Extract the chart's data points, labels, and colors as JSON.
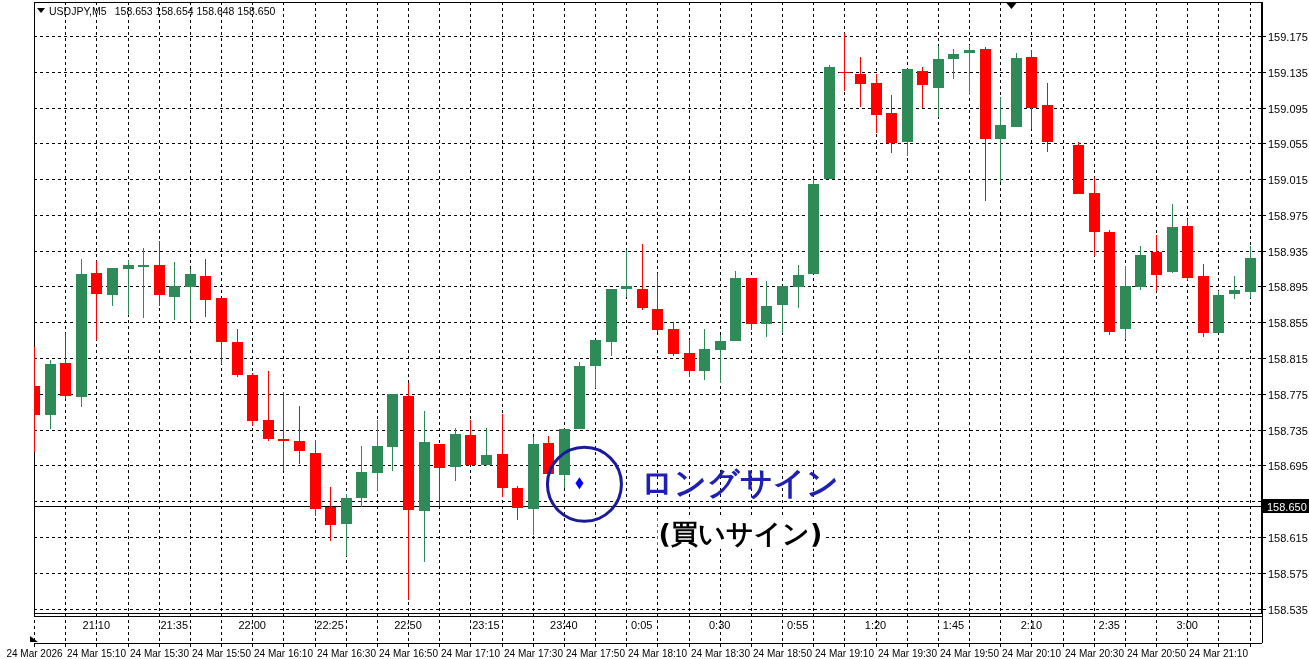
{
  "chart_data": {
    "type": "candlestick",
    "title": "USDJPY,M5",
    "subtitle": "158.653 158.654 158.648 158.650",
    "x": [
      "2026-03-24T14:50",
      "2026-03-24T14:55",
      "2026-03-24T15:00",
      "2026-03-24T15:05",
      "2026-03-24T15:10",
      "2026-03-24T15:15",
      "2026-03-24T15:20",
      "2026-03-24T15:25",
      "2026-03-24T15:30",
      "2026-03-24T15:35",
      "2026-03-24T15:40",
      "2026-03-24T15:45",
      "2026-03-24T15:50",
      "2026-03-24T15:55",
      "2026-03-24T16:00",
      "2026-03-24T16:05",
      "2026-03-24T16:10",
      "2026-03-24T16:15",
      "2026-03-24T16:20",
      "2026-03-24T16:25",
      "2026-03-24T16:30",
      "2026-03-24T16:35",
      "2026-03-24T16:40",
      "2026-03-24T16:45",
      "2026-03-24T16:50",
      "2026-03-24T16:55",
      "2026-03-24T17:00",
      "2026-03-24T17:05",
      "2026-03-24T17:10",
      "2026-03-24T17:15",
      "2026-03-24T17:20",
      "2026-03-24T17:25",
      "2026-03-24T17:30",
      "2026-03-24T17:35",
      "2026-03-24T17:40",
      "2026-03-24T17:45",
      "2026-03-24T17:50",
      "2026-03-24T17:55",
      "2026-03-24T18:00",
      "2026-03-24T18:05",
      "2026-03-24T18:10",
      "2026-03-24T18:15",
      "2026-03-24T18:20",
      "2026-03-24T18:25",
      "2026-03-24T18:30",
      "2026-03-24T18:35",
      "2026-03-24T18:40",
      "2026-03-24T18:45",
      "2026-03-24T18:50",
      "2026-03-24T18:55",
      "2026-03-24T19:00",
      "2026-03-24T19:05",
      "2026-03-24T19:10",
      "2026-03-24T19:15",
      "2026-03-24T19:20",
      "2026-03-24T19:25",
      "2026-03-24T19:30",
      "2026-03-24T19:35",
      "2026-03-24T19:40",
      "2026-03-24T19:45",
      "2026-03-24T19:50",
      "2026-03-24T19:55",
      "2026-03-24T20:00",
      "2026-03-24T20:05",
      "2026-03-24T20:10",
      "2026-03-24T20:15",
      "2026-03-24T20:25",
      "2026-03-24T20:30",
      "2026-03-24T20:35",
      "2026-03-24T20:40",
      "2026-03-24T20:45",
      "2026-03-24T20:50",
      "2026-03-24T20:55",
      "2026-03-24T21:00",
      "2026-03-24T21:05",
      "2026-03-24T21:10",
      "2026-03-24T21:15",
      "2026-03-24T21:20"
    ],
    "ohlc": [
      [
        158.784,
        158.827,
        158.71,
        158.751
      ],
      [
        158.751,
        158.813,
        158.736,
        158.808
      ],
      [
        158.809,
        158.843,
        158.769,
        158.773
      ],
      [
        158.771,
        158.926,
        158.76,
        158.909
      ],
      [
        158.91,
        158.923,
        158.835,
        158.887
      ],
      [
        158.886,
        158.916,
        158.873,
        158.916
      ],
      [
        158.915,
        158.925,
        158.863,
        158.919
      ],
      [
        158.917,
        158.938,
        158.86,
        158.919
      ],
      [
        158.919,
        158.946,
        158.873,
        158.885
      ],
      [
        158.883,
        158.922,
        158.857,
        158.896
      ],
      [
        158.894,
        158.915,
        158.857,
        158.909
      ],
      [
        158.907,
        158.926,
        158.861,
        158.88
      ],
      [
        158.882,
        158.882,
        158.808,
        158.833
      ],
      [
        158.833,
        158.847,
        158.794,
        158.796
      ],
      [
        158.796,
        158.798,
        158.739,
        158.745
      ],
      [
        158.746,
        158.801,
        158.722,
        158.725
      ],
      [
        158.725,
        158.777,
        158.689,
        158.722
      ],
      [
        158.722,
        158.761,
        158.696,
        158.711
      ],
      [
        158.709,
        158.723,
        158.638,
        158.646
      ],
      [
        158.648,
        158.671,
        158.61,
        158.628
      ],
      [
        158.629,
        158.663,
        158.594,
        158.659
      ],
      [
        158.659,
        158.717,
        158.648,
        158.688
      ],
      [
        158.687,
        158.746,
        158.666,
        158.717
      ],
      [
        158.716,
        158.775,
        158.689,
        158.775
      ],
      [
        158.773,
        158.787,
        158.545,
        158.645
      ],
      [
        158.644,
        158.756,
        158.587,
        158.721
      ],
      [
        158.719,
        158.719,
        158.65,
        158.692
      ],
      [
        158.693,
        158.737,
        158.678,
        158.73
      ],
      [
        158.729,
        158.746,
        158.695,
        158.695
      ],
      [
        158.695,
        158.737,
        158.694,
        158.707
      ],
      [
        158.708,
        158.752,
        158.66,
        158.67
      ],
      [
        158.67,
        158.672,
        158.634,
        158.647
      ],
      [
        158.646,
        158.727,
        158.617,
        158.719
      ],
      [
        158.72,
        158.728,
        158.685,
        158.685
      ],
      [
        158.684,
        158.736,
        158.67,
        158.736
      ],
      [
        158.736,
        158.811,
        158.736,
        158.806
      ],
      [
        158.806,
        158.835,
        158.781,
        158.835
      ],
      [
        158.833,
        158.892,
        158.817,
        158.892
      ],
      [
        158.892,
        158.936,
        158.883,
        158.895
      ],
      [
        158.892,
        158.942,
        158.869,
        158.871
      ],
      [
        158.87,
        158.91,
        158.844,
        158.846
      ],
      [
        158.847,
        158.855,
        158.817,
        158.819
      ],
      [
        158.821,
        158.835,
        158.794,
        158.8
      ],
      [
        158.801,
        158.847,
        158.79,
        158.825
      ],
      [
        158.824,
        158.841,
        158.787,
        158.834
      ],
      [
        158.834,
        158.912,
        158.834,
        158.905
      ],
      [
        158.904,
        158.904,
        158.846,
        158.853
      ],
      [
        158.853,
        158.901,
        158.838,
        158.873
      ],
      [
        158.874,
        158.895,
        158.843,
        158.895
      ],
      [
        158.894,
        158.919,
        158.871,
        158.908
      ],
      [
        158.909,
        159.015,
        158.909,
        159.009
      ],
      [
        159.015,
        159.143,
        159.015,
        159.14
      ],
      [
        159.135,
        159.178,
        159.114,
        159.134
      ],
      [
        159.133,
        159.151,
        159.096,
        159.121
      ],
      [
        159.122,
        159.133,
        159.067,
        159.087
      ],
      [
        159.089,
        159.109,
        159.044,
        159.055
      ],
      [
        159.057,
        159.138,
        159.041,
        159.138
      ],
      [
        159.136,
        159.14,
        159.094,
        159.12
      ],
      [
        159.117,
        159.164,
        159.084,
        159.149
      ],
      [
        159.149,
        159.161,
        159.127,
        159.155
      ],
      [
        159.156,
        159.165,
        159.109,
        159.159
      ],
      [
        159.16,
        159.163,
        158.99,
        159.06
      ],
      [
        159.06,
        159.107,
        159.012,
        159.075
      ],
      [
        159.073,
        159.156,
        159.073,
        159.15
      ],
      [
        159.151,
        159.159,
        159.071,
        159.095
      ],
      [
        159.098,
        159.122,
        159.045,
        159.057
      ],
      [
        159.053,
        159.057,
        158.998,
        158.998
      ],
      [
        159.0,
        159.017,
        158.929,
        158.956
      ],
      [
        158.956,
        158.958,
        158.841,
        158.844
      ],
      [
        158.848,
        158.918,
        158.836,
        158.896
      ],
      [
        158.894,
        158.94,
        158.891,
        158.93
      ],
      [
        158.934,
        158.953,
        158.89,
        158.908
      ],
      [
        158.911,
        158.987,
        158.91,
        158.962
      ],
      [
        158.963,
        158.97,
        158.902,
        158.905
      ],
      [
        158.907,
        158.92,
        158.839,
        158.843
      ],
      [
        158.843,
        158.89,
        158.843,
        158.886
      ],
      [
        158.887,
        158.907,
        158.881,
        158.891
      ],
      [
        158.889,
        158.94,
        158.882,
        158.927
      ]
    ],
    "colors": [
      "#ff0000",
      "#2e8b57",
      "#ff0000",
      "#2e8b57",
      "#ff0000",
      "#2e8b57",
      "#2e8b57",
      "#2e8b57",
      "#ff0000",
      "#2e8b57",
      "#2e8b57",
      "#ff0000",
      "#ff0000",
      "#ff0000",
      "#ff0000",
      "#ff0000",
      "#ff0000",
      "#ff0000",
      "#ff0000",
      "#ff0000",
      "#2e8b57",
      "#2e8b57",
      "#2e8b57",
      "#2e8b57",
      "#ff0000",
      "#2e8b57",
      "#ff0000",
      "#2e8b57",
      "#ff0000",
      "#2e8b57",
      "#ff0000",
      "#ff0000",
      "#2e8b57",
      "#ff0000",
      "#2e8b57",
      "#2e8b57",
      "#2e8b57",
      "#2e8b57",
      "#2e8b57",
      "#ff0000",
      "#ff0000",
      "#ff0000",
      "#ff0000",
      "#2e8b57",
      "#2e8b57",
      "#2e8b57",
      "#ff0000",
      "#2e8b57",
      "#2e8b57",
      "#2e8b57",
      "#2e8b57",
      "#2e8b57",
      "#ff0000",
      "#ff0000",
      "#ff0000",
      "#ff0000",
      "#2e8b57",
      "#ff0000",
      "#2e8b57",
      "#2e8b57",
      "#2e8b57",
      "#ff0000",
      "#2e8b57",
      "#2e8b57",
      "#ff0000",
      "#ff0000",
      "#ff0000",
      "#ff0000",
      "#ff0000",
      "#2e8b57",
      "#2e8b57",
      "#ff0000",
      "#2e8b57",
      "#ff0000",
      "#ff0000",
      "#2e8b57",
      "#2e8b57",
      "#2e8b57"
    ],
    "series": [
      {
        "type": "scatter",
        "x": [
          "2026-03-24T17:45"
        ],
        "values": [
          158.675
        ],
        "color": "#0000ff",
        "marker": "diamond"
      }
    ],
    "xlim": [
      "2026-03-24T14:50",
      "2026-03-24T21:24"
    ],
    "xticks": [
      {
        "value": "2026-03-24T14:50",
        "label": "24 Mar 2026"
      },
      {
        "value": "2026-03-24T15:00",
        "label": null
      },
      {
        "value": "2026-03-24T15:10",
        "label": "24 Mar 15:10"
      },
      {
        "value": "2026-03-24T15:20",
        "label": null
      },
      {
        "value": "2026-03-24T15:30",
        "label": "24 Mar 15:30"
      },
      {
        "value": "2026-03-24T15:40",
        "label": null
      },
      {
        "value": "2026-03-24T15:50",
        "label": "24 Mar 15:50"
      },
      {
        "value": "2026-03-24T16:00",
        "label": null
      },
      {
        "value": "2026-03-24T16:10",
        "label": "24 Mar 16:10"
      },
      {
        "value": "2026-03-24T16:20",
        "label": null
      },
      {
        "value": "2026-03-24T16:30",
        "label": "24 Mar 16:30"
      },
      {
        "value": "2026-03-24T16:40",
        "label": null
      },
      {
        "value": "2026-03-24T16:50",
        "label": "24 Mar 16:50"
      },
      {
        "value": "2026-03-24T17:00",
        "label": null
      },
      {
        "value": "2026-03-24T17:10",
        "label": "24 Mar 17:10"
      },
      {
        "value": "2026-03-24T17:20",
        "label": null
      },
      {
        "value": "2026-03-24T17:30",
        "label": "24 Mar 17:30"
      },
      {
        "value": "2026-03-24T17:40",
        "label": null
      },
      {
        "value": "2026-03-24T17:50",
        "label": "24 Mar 17:50"
      },
      {
        "value": "2026-03-24T18:00",
        "label": null
      },
      {
        "value": "2026-03-24T18:10",
        "label": "24 Mar 18:10"
      },
      {
        "value": "2026-03-24T18:20",
        "label": null
      },
      {
        "value": "2026-03-24T18:30",
        "label": "24 Mar 18:30"
      },
      {
        "value": "2026-03-24T18:40",
        "label": null
      },
      {
        "value": "2026-03-24T18:50",
        "label": "24 Mar 18:50"
      },
      {
        "value": "2026-03-24T19:00",
        "label": null
      },
      {
        "value": "2026-03-24T19:10",
        "label": "24 Mar 19:10"
      },
      {
        "value": "2026-03-24T19:20",
        "label": null
      },
      {
        "value": "2026-03-24T19:30",
        "label": "24 Mar 19:30"
      },
      {
        "value": "2026-03-24T19:40",
        "label": null
      },
      {
        "value": "2026-03-24T19:50",
        "label": "24 Mar 19:50"
      },
      {
        "value": "2026-03-24T20:00",
        "label": null
      },
      {
        "value": "2026-03-24T20:10",
        "label": "24 Mar 20:10"
      },
      {
        "value": "2026-03-24T20:20",
        "label": null
      },
      {
        "value": "2026-03-24T20:30",
        "label": "24 Mar 20:30"
      },
      {
        "value": "2026-03-24T20:40",
        "label": null
      },
      {
        "value": "2026-03-24T20:50",
        "label": "24 Mar 20:50"
      },
      {
        "value": "2026-03-24T21:00",
        "label": null
      },
      {
        "value": "2026-03-24T21:10",
        "label": "24 Mar 21:10"
      },
      {
        "value": "2026-03-24T21:20",
        "label": null
      }
    ],
    "x2lim": [
      "2026-03-24T20:50",
      "2026-03-25T03:24"
    ],
    "x2ticks": [
      {
        "value": "2026-03-24T21:10",
        "label": "21:10"
      },
      {
        "value": "2026-03-24T21:35",
        "label": "21:35"
      },
      {
        "value": "2026-03-24T22:00",
        "label": "22:00"
      },
      {
        "value": "2026-03-24T22:25",
        "label": "22:25"
      },
      {
        "value": "2026-03-24T22:50",
        "label": "22:50"
      },
      {
        "value": "2026-03-24T23:15",
        "label": "23:15"
      },
      {
        "value": "2026-03-24T23:40",
        "label": "23:40"
      },
      {
        "value": "2026-03-25T00:05",
        "label": "0:05"
      },
      {
        "value": "2026-03-25T00:30",
        "label": "0:30"
      },
      {
        "value": "2026-03-25T00:55",
        "label": "0:55"
      },
      {
        "value": "2026-03-25T01:20",
        "label": "1:20"
      },
      {
        "value": "2026-03-25T01:45",
        "label": "1:45"
      },
      {
        "value": "2026-03-25T02:10",
        "label": "2:10"
      },
      {
        "value": "2026-03-25T02:35",
        "label": "2:35"
      },
      {
        "value": "2026-03-25T03:00",
        "label": "3:00"
      }
    ],
    "ylim": [
      158.53,
      159.213
    ],
    "yticks": [
      158.535,
      158.575,
      158.615,
      {
        "value": 158.655,
        "label": null
      },
      158.695,
      158.735,
      158.775,
      158.815,
      158.855,
      158.895,
      158.935,
      158.975,
      159.015,
      159.055,
      159.095,
      159.135,
      159.175
    ],
    "grid": true,
    "ref_lines": [
      {
        "axis": "y",
        "value": 158.65,
        "label": "158.650",
        "color": "#000000"
      }
    ],
    "annotations": [
      {
        "text": "ロングサイン",
        "x": "2026-03-24T17:45",
        "y": 158.675
      },
      "(買いサイン)"
    ]
  }
}
